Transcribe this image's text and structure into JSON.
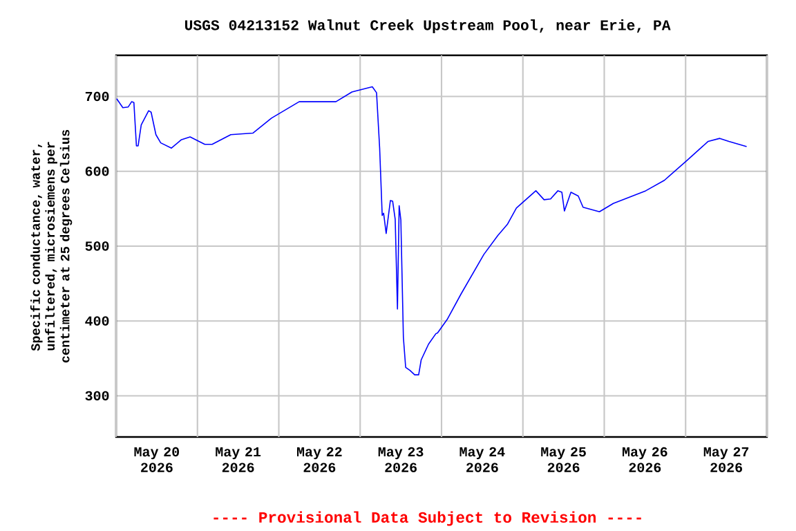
{
  "chart_data": {
    "type": "line",
    "title": "USGS 04213152 Walnut Creek Upstream Pool, near Erie, PA",
    "ylabel": "Specific conductance, water, unfiltered, microsiemens per centimeter at 25 degrees Celsius",
    "annotations": [
      "---- Provisional Data Subject to Revision ----"
    ],
    "x": [
      "2026-05-20T00:10",
      "2026-05-20T02:00",
      "2026-05-20T03:35",
      "2026-05-20T04:35",
      "2026-05-20T05:15",
      "2026-05-20T06:00",
      "2026-05-20T06:30",
      "2026-05-20T07:25",
      "2026-05-20T09:36",
      "2026-05-20T10:20",
      "2026-05-20T11:45",
      "2026-05-20T13:10",
      "2026-05-20T16:20",
      "2026-05-20T19:10",
      "2026-05-20T21:50",
      "2026-05-21T02:10",
      "2026-05-21T04:20",
      "2026-05-21T09:50",
      "2026-05-21T16:20",
      "2026-05-21T21:50",
      "2026-05-22T06:00",
      "2026-05-22T12:40",
      "2026-05-22T16:50",
      "2026-05-22T21:35",
      "2026-05-23T03:35",
      "2026-05-23T04:50",
      "2026-05-23T05:45",
      "2026-05-23T06:30",
      "2026-05-23T06:55",
      "2026-05-23T07:40",
      "2026-05-23T08:55",
      "2026-05-23T09:35",
      "2026-05-23T10:20",
      "2026-05-23T11:00",
      "2026-05-23T11:30",
      "2026-05-23T12:00",
      "2026-05-23T12:45",
      "2026-05-23T13:25",
      "2026-05-23T14:40",
      "2026-05-23T16:05",
      "2026-05-23T17:15",
      "2026-05-23T18:00",
      "2026-05-23T20:10",
      "2026-05-23T22:20",
      "2026-05-23T22:50",
      "2026-05-24T01:40",
      "2026-05-24T05:45",
      "2026-05-24T12:30",
      "2026-05-24T16:35",
      "2026-05-24T19:25",
      "2026-05-24T22:05",
      "2026-05-25T03:50",
      "2026-05-25T06:15",
      "2026-05-25T08:10",
      "2026-05-25T10:20",
      "2026-05-25T11:30",
      "2026-05-25T12:15",
      "2026-05-25T14:10",
      "2026-05-25T16:20",
      "2026-05-25T17:45",
      "2026-05-25T22:35",
      "2026-05-26T02:40",
      "2026-05-26T12:15",
      "2026-05-26T17:45",
      "2026-05-27T00:30",
      "2026-05-27T06:40",
      "2026-05-27T10:05",
      "2026-05-27T12:45",
      "2026-05-27T18:00"
    ],
    "series": [
      {
        "color": "#0000ff",
        "values": [
          697,
          685,
          686,
          693,
          692,
          634,
          634,
          662,
          681,
          679,
          649,
          638,
          631,
          642,
          646,
          636,
          636,
          649,
          651,
          671,
          693,
          693,
          693,
          706,
          713,
          705,
          631,
          541,
          544,
          517,
          561,
          560,
          536,
          416,
          554,
          535,
          378,
          338,
          334,
          328,
          328,
          348,
          369,
          383,
          384,
          402,
          436,
          489,
          514,
          529,
          551,
          574,
          562,
          563,
          574,
          572,
          547,
          572,
          567,
          552,
          546,
          557,
          574,
          588,
          615,
          640,
          644,
          640,
          633
        ]
      }
    ],
    "xlim": [
      "2026-05-20T00:00",
      "2026-05-28T00:00"
    ],
    "xticks": [
      {
        "value": "2026-05-20T00:00",
        "label": null
      },
      {
        "value": "2026-05-20T12:00",
        "label": "May 20 2026"
      },
      {
        "value": "2026-05-21T00:00",
        "label": null
      },
      {
        "value": "2026-05-21T12:00",
        "label": "May 21 2026"
      },
      {
        "value": "2026-05-22T00:00",
        "label": null
      },
      {
        "value": "2026-05-22T12:00",
        "label": "May 22 2026"
      },
      {
        "value": "2026-05-23T00:00",
        "label": null
      },
      {
        "value": "2026-05-23T12:00",
        "label": "May 23 2026"
      },
      {
        "value": "2026-05-24T00:00",
        "label": null
      },
      {
        "value": "2026-05-24T12:00",
        "label": "May 24 2026"
      },
      {
        "value": "2026-05-25T00:00",
        "label": null
      },
      {
        "value": "2026-05-25T12:00",
        "label": "May 25 2026"
      },
      {
        "value": "2026-05-26T00:00",
        "label": null
      },
      {
        "value": "2026-05-26T12:00",
        "label": "May 26 2026"
      },
      {
        "value": "2026-05-27T00:00",
        "label": null
      },
      {
        "value": "2026-05-27T12:00",
        "label": "May 27 2026"
      },
      {
        "value": "2026-05-28T00:00",
        "label": null
      }
    ],
    "ylim": [
      245,
      755
    ],
    "yticks": [
      300,
      400,
      500,
      600,
      700
    ],
    "grid": true
  }
}
